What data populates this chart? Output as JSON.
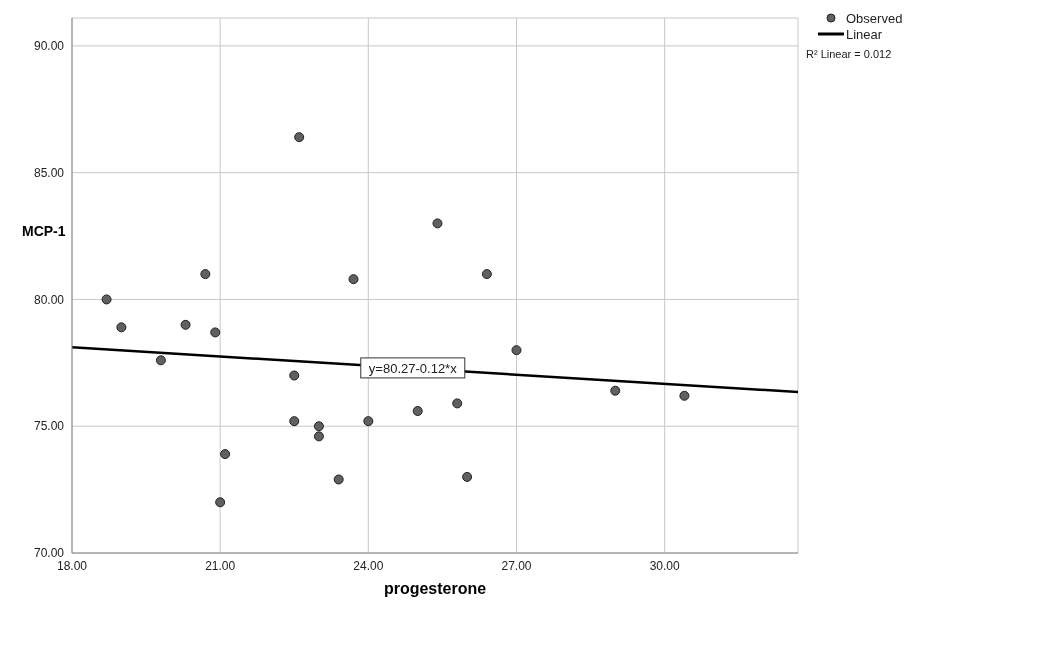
{
  "chart_data": {
    "type": "scatter",
    "xlabel": "progesterone",
    "ylabel": "MCP-1",
    "xlim": [
      18,
      32.7
    ],
    "ylim": [
      70,
      91.1
    ],
    "xticks": [
      {
        "value": 18,
        "label": "18.00"
      },
      {
        "value": 21,
        "label": "21.00"
      },
      {
        "value": 24,
        "label": "24.00"
      },
      {
        "value": 27,
        "label": "27.00"
      },
      {
        "value": 30,
        "label": "30.00"
      }
    ],
    "yticks": [
      {
        "value": 70,
        "label": "70.00"
      },
      {
        "value": 75,
        "label": "75.00"
      },
      {
        "value": 80,
        "label": "80.00"
      },
      {
        "value": 85,
        "label": "85.00"
      },
      {
        "value": 90,
        "label": "90.00"
      }
    ],
    "grid": true,
    "legend": "top right",
    "series": [
      {
        "name": "Observed",
        "marker": "circle",
        "color": "#606060",
        "x": [
          18.7,
          19.0,
          19.8,
          20.3,
          20.7,
          20.9,
          21.1,
          21.0,
          22.5,
          22.5,
          23.0,
          23.0,
          23.4,
          22.6,
          25.4,
          23.7,
          26.4,
          27.0,
          25.0,
          25.8,
          24.0,
          26.0,
          29.0,
          30.4
        ],
        "values": [
          80.0,
          78.9,
          77.6,
          79.0,
          81.0,
          78.7,
          73.9,
          72.0,
          77.0,
          75.2,
          75.0,
          74.6,
          72.9,
          86.4,
          83.0,
          80.8,
          81.0,
          78.0,
          75.6,
          75.9,
          75.2,
          73.0,
          76.4,
          76.2
        ]
      },
      {
        "name": "Linear",
        "type": "line",
        "marker": "none",
        "color": "#000000",
        "x": [
          18,
          32.7
        ],
        "values": [
          78.11,
          76.35
        ]
      }
    ],
    "annotations": [
      {
        "text": "y=80.27-0.12*x",
        "x": 24.9,
        "y": 77.3
      },
      "R² Linear = 0.012"
    ]
  }
}
